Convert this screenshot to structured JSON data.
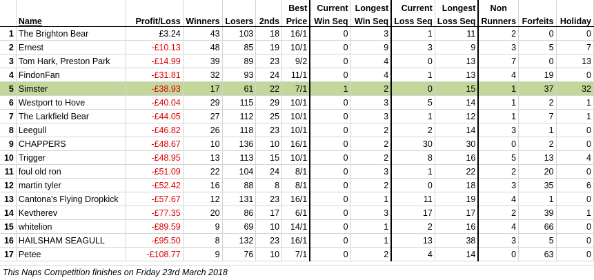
{
  "headers": {
    "row1": [
      "",
      "",
      "",
      "",
      "",
      "",
      "Best",
      "Current",
      "Longest",
      "Current",
      "Longest",
      "Non",
      "",
      ""
    ],
    "row2": [
      "",
      "Name",
      "Profit/Loss",
      "Winners",
      "Losers",
      "2nds",
      "Price",
      "Win Seq",
      "Win Seq",
      "Loss Seq",
      "Loss Seq",
      "Runners",
      "Forfeits",
      "Holiday"
    ]
  },
  "rows": [
    {
      "pos": "1",
      "name": "The Brighton Bear",
      "pl": "£3.24",
      "neg": false,
      "w": "43",
      "l": "103",
      "s": "18",
      "bp": "16/1",
      "cws": "0",
      "lws": "3",
      "cls": "1",
      "lls": "11",
      "nr": "2",
      "f": "0",
      "h": "0"
    },
    {
      "pos": "2",
      "name": "Ernest",
      "pl": "-£10.13",
      "neg": true,
      "w": "48",
      "l": "85",
      "s": "19",
      "bp": "10/1",
      "cws": "0",
      "lws": "9",
      "cls": "3",
      "lls": "9",
      "nr": "3",
      "f": "5",
      "h": "7"
    },
    {
      "pos": "3",
      "name": "Tom Hark, Preston Park",
      "pl": "-£14.99",
      "neg": true,
      "w": "39",
      "l": "89",
      "s": "23",
      "bp": "9/2",
      "cws": "0",
      "lws": "4",
      "cls": "0",
      "lls": "13",
      "nr": "7",
      "f": "0",
      "h": "13"
    },
    {
      "pos": "4",
      "name": "FindonFan",
      "pl": "-£31.81",
      "neg": true,
      "w": "32",
      "l": "93",
      "s": "24",
      "bp": "11/1",
      "cws": "0",
      "lws": "4",
      "cls": "1",
      "lls": "13",
      "nr": "4",
      "f": "19",
      "h": "0"
    },
    {
      "pos": "5",
      "name": "Simster",
      "pl": "-£38.93",
      "neg": true,
      "w": "17",
      "l": "61",
      "s": "22",
      "bp": "7/1",
      "cws": "1",
      "lws": "2",
      "cls": "0",
      "lls": "15",
      "nr": "1",
      "f": "37",
      "h": "32",
      "hl": true
    },
    {
      "pos": "6",
      "name": "Westport to Hove",
      "pl": "-£40.04",
      "neg": true,
      "w": "29",
      "l": "115",
      "s": "29",
      "bp": "10/1",
      "cws": "0",
      "lws": "3",
      "cls": "5",
      "lls": "14",
      "nr": "1",
      "f": "2",
      "h": "1"
    },
    {
      "pos": "7",
      "name": "The Larkfield Bear",
      "pl": "-£44.05",
      "neg": true,
      "w": "27",
      "l": "112",
      "s": "25",
      "bp": "10/1",
      "cws": "0",
      "lws": "3",
      "cls": "1",
      "lls": "12",
      "nr": "1",
      "f": "7",
      "h": "1"
    },
    {
      "pos": "8",
      "name": "Leegull",
      "pl": "-£46.82",
      "neg": true,
      "w": "26",
      "l": "118",
      "s": "23",
      "bp": "10/1",
      "cws": "0",
      "lws": "2",
      "cls": "2",
      "lls": "14",
      "nr": "3",
      "f": "1",
      "h": "0"
    },
    {
      "pos": "9",
      "name": "CHAPPERS",
      "pl": "-£48.67",
      "neg": true,
      "w": "10",
      "l": "136",
      "s": "10",
      "bp": "16/1",
      "cws": "0",
      "lws": "2",
      "cls": "30",
      "lls": "30",
      "nr": "0",
      "f": "2",
      "h": "0"
    },
    {
      "pos": "10",
      "name": "Trigger",
      "pl": "-£48.95",
      "neg": true,
      "w": "13",
      "l": "113",
      "s": "15",
      "bp": "10/1",
      "cws": "0",
      "lws": "2",
      "cls": "8",
      "lls": "16",
      "nr": "5",
      "f": "13",
      "h": "4"
    },
    {
      "pos": "11",
      "name": "foul old ron",
      "pl": "-£51.09",
      "neg": true,
      "w": "22",
      "l": "104",
      "s": "24",
      "bp": "8/1",
      "cws": "0",
      "lws": "3",
      "cls": "1",
      "lls": "22",
      "nr": "2",
      "f": "20",
      "h": "0"
    },
    {
      "pos": "12",
      "name": "martin tyler",
      "pl": "-£52.42",
      "neg": true,
      "w": "16",
      "l": "88",
      "s": "8",
      "bp": "8/1",
      "cws": "0",
      "lws": "2",
      "cls": "0",
      "lls": "18",
      "nr": "3",
      "f": "35",
      "h": "6"
    },
    {
      "pos": "13",
      "name": "Cantona's Flying Dropkick",
      "pl": "-£57.67",
      "neg": true,
      "w": "12",
      "l": "131",
      "s": "23",
      "bp": "16/1",
      "cws": "0",
      "lws": "1",
      "cls": "11",
      "lls": "19",
      "nr": "4",
      "f": "1",
      "h": "0"
    },
    {
      "pos": "14",
      "name": "Kevtherev",
      "pl": "-£77.35",
      "neg": true,
      "w": "20",
      "l": "86",
      "s": "17",
      "bp": "6/1",
      "cws": "0",
      "lws": "3",
      "cls": "17",
      "lls": "17",
      "nr": "2",
      "f": "39",
      "h": "1"
    },
    {
      "pos": "15",
      "name": "whitelion",
      "pl": "-£89.59",
      "neg": true,
      "w": "9",
      "l": "69",
      "s": "10",
      "bp": "14/1",
      "cws": "0",
      "lws": "1",
      "cls": "2",
      "lls": "16",
      "nr": "4",
      "f": "66",
      "h": "0"
    },
    {
      "pos": "16",
      "name": "HAILSHAM SEAGULL",
      "pl": "-£95.50",
      "neg": true,
      "w": "8",
      "l": "132",
      "s": "23",
      "bp": "16/1",
      "cws": "0",
      "lws": "1",
      "cls": "13",
      "lls": "38",
      "nr": "3",
      "f": "5",
      "h": "0"
    },
    {
      "pos": "17",
      "name": "Petee",
      "pl": "-£108.77",
      "neg": true,
      "w": "9",
      "l": "76",
      "s": "10",
      "bp": "7/1",
      "cws": "0",
      "lws": "2",
      "cls": "4",
      "lls": "14",
      "nr": "0",
      "f": "63",
      "h": "0"
    }
  ],
  "footnote": "This Naps Competition finishes on Friday 23rd March 2018",
  "colors": {
    "highlight": "#c4d79b",
    "negative": "#e00000",
    "gridline": "#d4d4d4"
  }
}
